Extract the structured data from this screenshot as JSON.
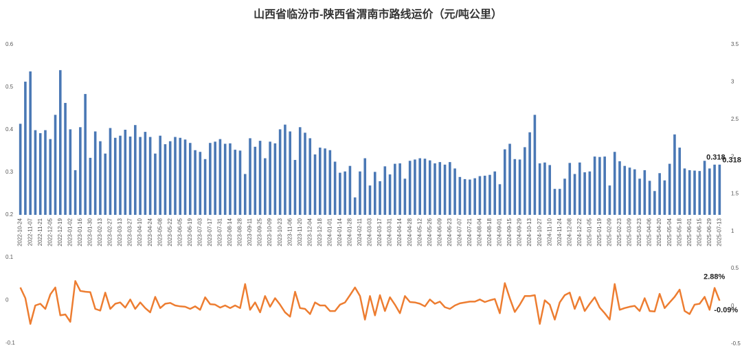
{
  "chart_data": [
    {
      "type": "bar",
      "title": "山西省临汾市-陕西省渭南市路线运价（元/吨公里）",
      "color": "#4a78b5",
      "categories": [
        "2022-10-24",
        null,
        "2022-11-07",
        null,
        "2022-11-21",
        null,
        "2022-12-05",
        null,
        "2022-12-19",
        null,
        "2023-01-02",
        null,
        "2023-01-16",
        null,
        "2023-01-30",
        null,
        "2023-02-13",
        null,
        "2023-02-27",
        null,
        "2023-03-13",
        null,
        "2023-03-27",
        null,
        "2023-04-10",
        null,
        "2023-04-24",
        null,
        "2023-05-08",
        null,
        "2023-05-22",
        null,
        "2023-06-05",
        null,
        "2023-06-19",
        null,
        "2023-07-03",
        null,
        "2023-07-17",
        null,
        "2023-07-31",
        null,
        "2023-08-14",
        null,
        "2023-08-28",
        null,
        "2023-09-11",
        null,
        "2023-09-25",
        null,
        "2023-10-09",
        null,
        "2023-10-23",
        null,
        "2023-11-06",
        null,
        "2023-11-20",
        null,
        "2023-12-04",
        null,
        "2023-12-18",
        null,
        "2024-01-01",
        null,
        "2024-01-14",
        null,
        "2024-01-28",
        null,
        "2024-02-11",
        null,
        "2024-03-03",
        null,
        "2024-03-17",
        null,
        "2024-03-31",
        null,
        "2024-04-14",
        null,
        "2024-04-28",
        null,
        "2024-05-12",
        null,
        "2024-05-26",
        null,
        "2024-06-09",
        null,
        "2024-06-23",
        null,
        "2024-07-07",
        null,
        "2024-07-21",
        null,
        "2024-08-04",
        null,
        "2024-08-18",
        null,
        "2024-09-01",
        null,
        "2024-09-15",
        null,
        "2024-09-29",
        null,
        "2024-10-13",
        null,
        "2024-10-27",
        null,
        "2024-11-10",
        null,
        "2024-11-24",
        null,
        "2024-12-08",
        null,
        "2024-12-22",
        null,
        "2025-01-05",
        null,
        "2025-01-19",
        null,
        "2025-02-09",
        null,
        "2025-02-23",
        null,
        "2025-03-09",
        null,
        "2025-03-23",
        null,
        "2025-04-06",
        null,
        "2025-04-20",
        null,
        "2025-05-04",
        null,
        "2025-05-18",
        null,
        "2025-06-01",
        null,
        "2025-06-15",
        null,
        "2025-06-29",
        null,
        "2025-07-13"
      ],
      "values": [
        0.414,
        0.513,
        0.537,
        0.399,
        0.392,
        0.399,
        0.378,
        0.435,
        0.54,
        0.463,
        0.401,
        0.305,
        0.406,
        0.484,
        0.334,
        0.396,
        0.373,
        0.344,
        0.404,
        0.381,
        0.386,
        0.4,
        0.384,
        0.411,
        0.383,
        0.395,
        0.383,
        0.344,
        0.386,
        0.366,
        0.373,
        0.383,
        0.381,
        0.377,
        0.369,
        0.352,
        0.348,
        0.331,
        0.369,
        0.372,
        0.378,
        0.367,
        0.368,
        0.353,
        0.351,
        0.296,
        0.38,
        0.36,
        0.374,
        0.333,
        0.372,
        0.368,
        0.401,
        0.412,
        0.396,
        0.329,
        0.406,
        0.393,
        0.38,
        0.342,
        0.358,
        0.356,
        0.352,
        0.325,
        0.299,
        0.302,
        0.315,
        0.241,
        0.302,
        0.333,
        0.269,
        0.301,
        0.279,
        0.314,
        0.295,
        0.32,
        0.321,
        0.285,
        0.327,
        0.33,
        0.333,
        0.332,
        0.328,
        0.321,
        0.324,
        0.318,
        0.324,
        0.309,
        0.289,
        0.284,
        0.283,
        0.286,
        0.291,
        0.292,
        0.294,
        0.302,
        0.272,
        0.354,
        0.367,
        0.331,
        0.33,
        0.359,
        0.394,
        0.435,
        0.321,
        0.323,
        0.317,
        0.261,
        0.261,
        0.285,
        0.322,
        0.296,
        0.323,
        0.3,
        0.302,
        0.337,
        0.336,
        0.337,
        0.269,
        0.348,
        0.326,
        0.315,
        0.311,
        0.307,
        0.285,
        0.305,
        0.28,
        0.256,
        0.298,
        0.281,
        0.32,
        0.389,
        0.358,
        0.309,
        0.305,
        0.304,
        0.303,
        0.327,
        0.309,
        0.318,
        0.318
      ],
      "value_labels": [
        null,
        null,
        null,
        null,
        null,
        null,
        null,
        null,
        null,
        null,
        null,
        null,
        null,
        null,
        null,
        null,
        null,
        null,
        null,
        null,
        null,
        null,
        null,
        null,
        null,
        null,
        null,
        null,
        null,
        null,
        null,
        null,
        null,
        null,
        null,
        null,
        null,
        null,
        null,
        null,
        null,
        null,
        null,
        null,
        null,
        null,
        null,
        null,
        null,
        null,
        null,
        null,
        null,
        null,
        null,
        null,
        null,
        null,
        null,
        null,
        null,
        null,
        null,
        null,
        null,
        null,
        null,
        null,
        null,
        null,
        null,
        null,
        null,
        null,
        null,
        null,
        null,
        null,
        null,
        null,
        null,
        null,
        null,
        null,
        null,
        null,
        null,
        null,
        null,
        null,
        null,
        null,
        null,
        null,
        null,
        null,
        null,
        null,
        null,
        null,
        null,
        null,
        null,
        null,
        null,
        null,
        null,
        null,
        null,
        null,
        null,
        null,
        null,
        null,
        null,
        null,
        null,
        null,
        null,
        null,
        null,
        null,
        null,
        null,
        null,
        null,
        null,
        null,
        null,
        null,
        null,
        null,
        null,
        null,
        null,
        null,
        null,
        null,
        null,
        "0.318",
        "0.318"
      ],
      "ylim": [
        0.2,
        0.6
      ],
      "yticks": [
        0.2,
        0.3,
        0.4,
        0.5,
        0.6
      ],
      "y2lim": [
        1,
        3.5
      ],
      "y2ticks": [
        1,
        1.5,
        2,
        2.5,
        3,
        3.5
      ]
    },
    {
      "type": "line",
      "color": "#ed7d31",
      "values": [
        0.03,
        0.005,
        -0.055,
        -0.012,
        -0.008,
        -0.02,
        0.014,
        0.03,
        -0.035,
        -0.033,
        -0.05,
        0.045,
        0.022,
        0.02,
        0.019,
        -0.02,
        -0.024,
        0.018,
        -0.02,
        -0.008,
        -0.005,
        -0.017,
        0.002,
        -0.02,
        -0.005,
        -0.018,
        -0.028,
        0.008,
        -0.018,
        -0.008,
        -0.006,
        -0.012,
        -0.014,
        -0.015,
        -0.02,
        -0.014,
        -0.022,
        0.007,
        -0.009,
        -0.01,
        -0.017,
        -0.012,
        -0.018,
        -0.012,
        -0.018,
        0.038,
        -0.022,
        -0.005,
        -0.028,
        0.01,
        -0.015,
        0.005,
        -0.01,
        -0.028,
        -0.038,
        0.02,
        -0.018,
        -0.02,
        -0.032,
        -0.005,
        -0.012,
        -0.012,
        -0.025,
        -0.025,
        -0.01,
        -0.005,
        0.012,
        0.03,
        0.01,
        -0.045,
        0.01,
        -0.035,
        0.012,
        -0.025,
        0.007,
        -0.01,
        -0.03,
        0.01,
        -0.004,
        -0.005,
        -0.008,
        -0.014,
        0.002,
        -0.008,
        -0.003,
        -0.016,
        -0.02,
        -0.012,
        -0.007,
        -0.005,
        -0.003,
        -0.003,
        0.002,
        -0.004,
        0.0,
        0.003,
        -0.03,
        0.04,
        0.005,
        -0.027,
        -0.01,
        0.01,
        0.01,
        0.012,
        -0.055,
        0.0,
        -0.01,
        -0.045,
        -0.005,
        0.012,
        0.018,
        -0.02,
        0.008,
        -0.025,
        -0.008,
        0.007,
        -0.017,
        -0.03,
        -0.045,
        0.038,
        -0.022,
        -0.018,
        -0.015,
        -0.013,
        -0.025,
        0.005,
        -0.025,
        -0.026,
        0.015,
        -0.018,
        -0.005,
        0.008,
        0.025,
        -0.025,
        -0.032,
        -0.01,
        -0.008,
        0.008,
        -0.022,
        0.0288,
        -0.0009
      ],
      "value_labels": [
        null,
        null,
        null,
        null,
        null,
        null,
        null,
        null,
        null,
        null,
        null,
        null,
        null,
        null,
        null,
        null,
        null,
        null,
        null,
        null,
        null,
        null,
        null,
        null,
        null,
        null,
        null,
        null,
        null,
        null,
        null,
        null,
        null,
        null,
        null,
        null,
        null,
        null,
        null,
        null,
        null,
        null,
        null,
        null,
        null,
        null,
        null,
        null,
        null,
        null,
        null,
        null,
        null,
        null,
        null,
        null,
        null,
        null,
        null,
        null,
        null,
        null,
        null,
        null,
        null,
        null,
        null,
        null,
        null,
        null,
        null,
        null,
        null,
        null,
        null,
        null,
        null,
        null,
        null,
        null,
        null,
        null,
        null,
        null,
        null,
        null,
        null,
        null,
        null,
        null,
        null,
        null,
        null,
        null,
        null,
        null,
        null,
        null,
        null,
        null,
        null,
        null,
        null,
        null,
        null,
        null,
        null,
        null,
        null,
        null,
        null,
        null,
        null,
        null,
        null,
        null,
        null,
        null,
        null,
        null,
        null,
        null,
        null,
        null,
        null,
        null,
        null,
        null,
        null,
        null,
        null,
        null,
        null,
        null,
        null,
        null,
        null,
        null,
        null,
        "2.88%",
        "-0.09%"
      ],
      "ylim": [
        -0.1,
        0.1
      ],
      "yticks": [
        -0.1,
        0,
        0.1
      ],
      "y2lim": [
        -0.5,
        0.5
      ],
      "y2ticks": [
        -0.5,
        0,
        0.5
      ]
    }
  ]
}
